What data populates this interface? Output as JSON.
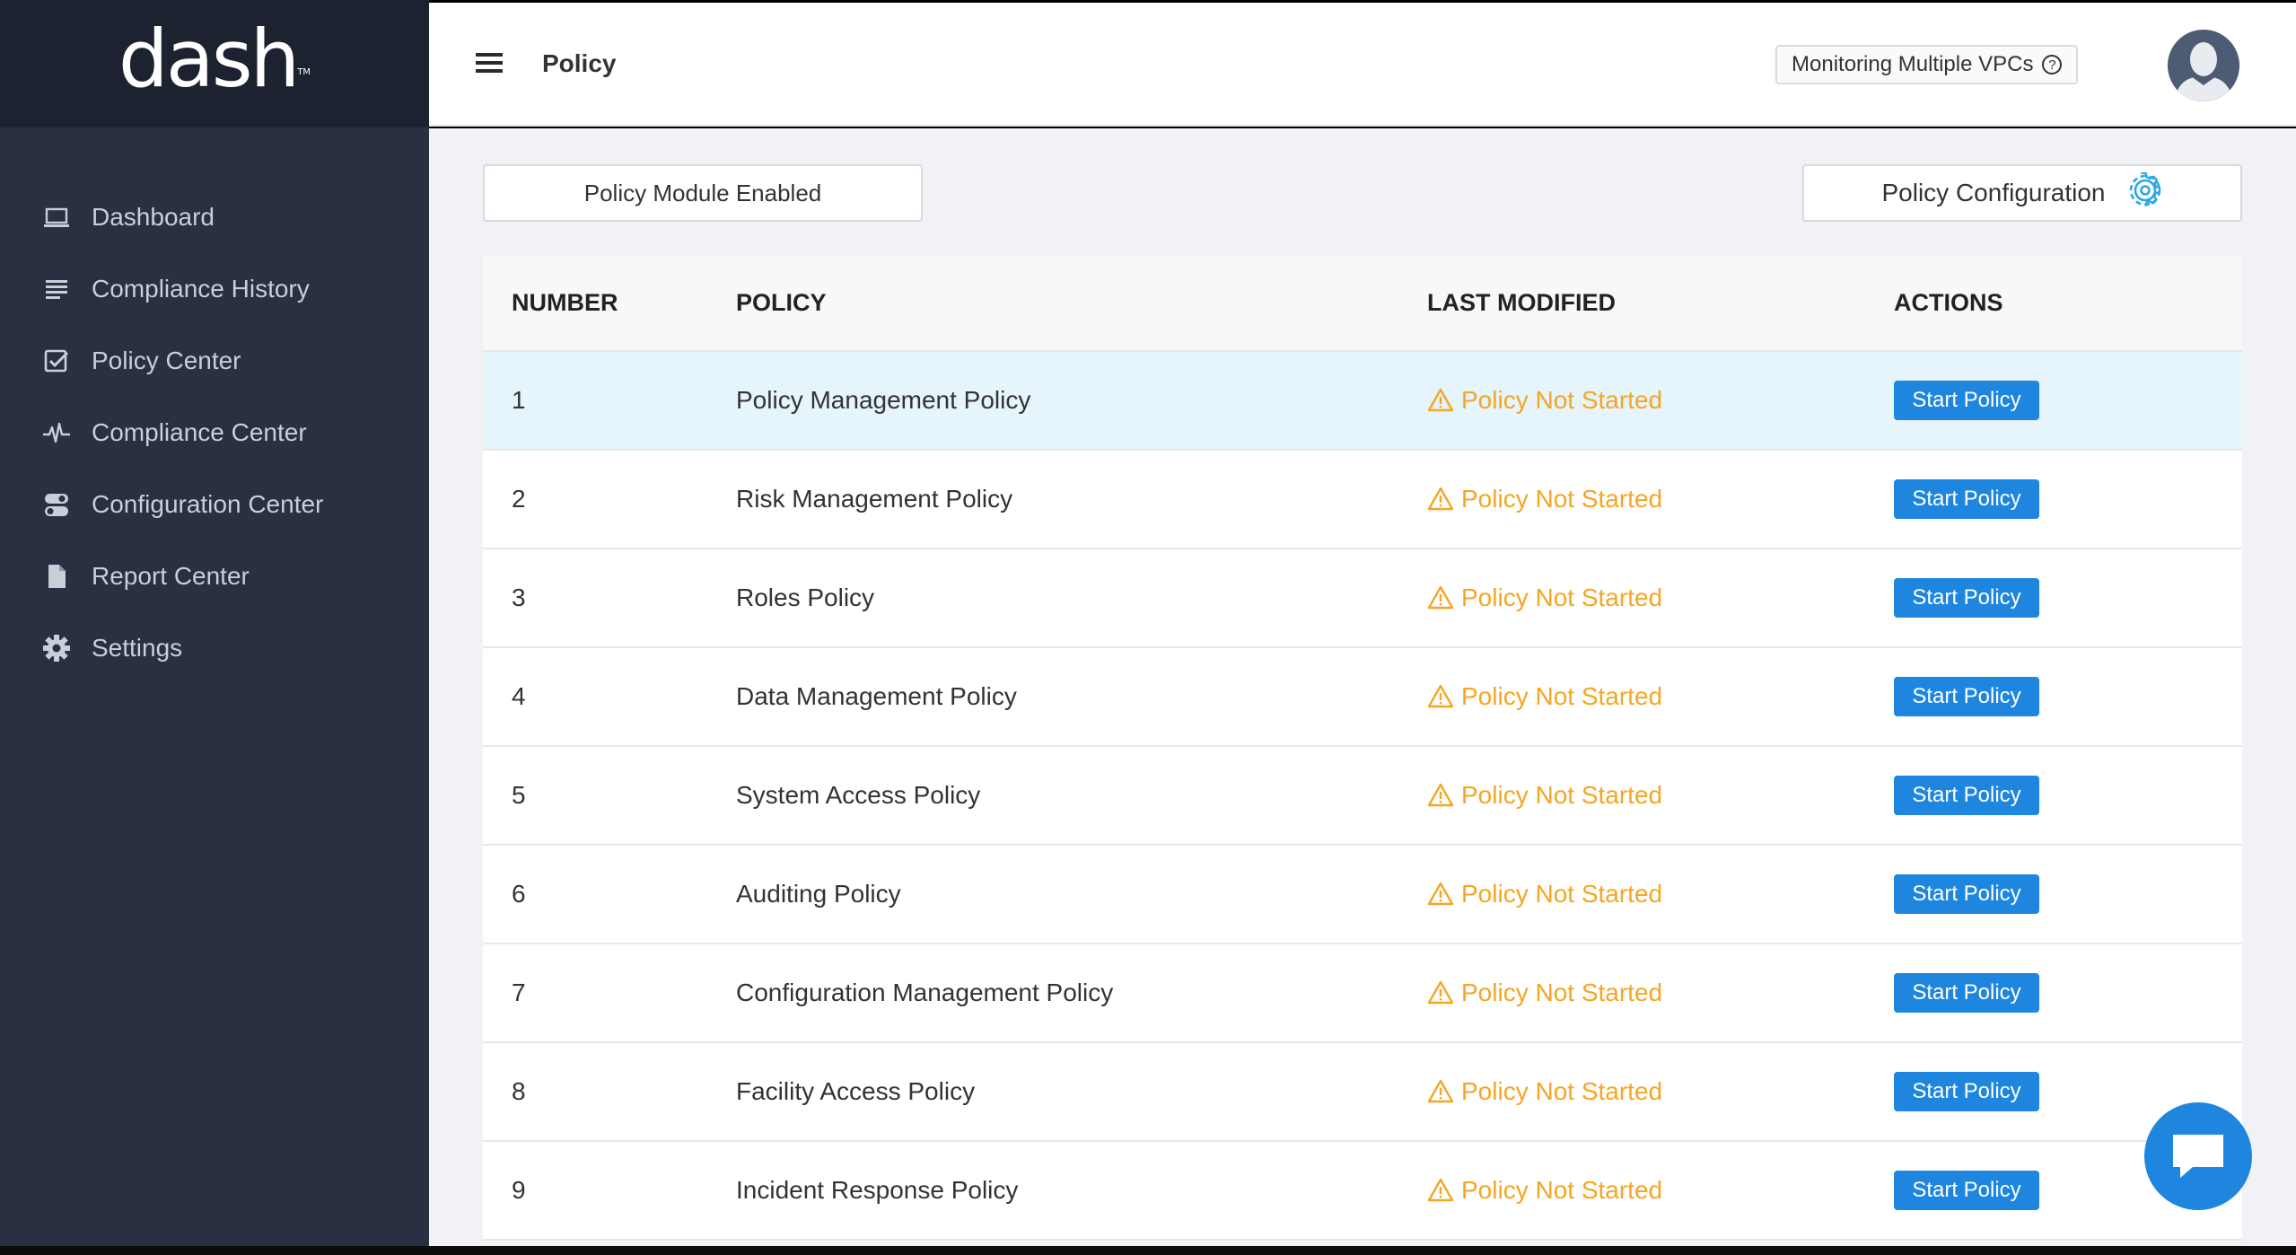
{
  "app": {
    "logo": "dash",
    "logo_tm": "TM"
  },
  "sidebar": {
    "items": [
      {
        "label": "Dashboard",
        "icon": "laptop-icon"
      },
      {
        "label": "Compliance History",
        "icon": "list-icon"
      },
      {
        "label": "Policy Center",
        "icon": "checkbox-icon"
      },
      {
        "label": "Compliance Center",
        "icon": "pulse-icon"
      },
      {
        "label": "Configuration Center",
        "icon": "toggles-icon"
      },
      {
        "label": "Report Center",
        "icon": "file-icon"
      },
      {
        "label": "Settings",
        "icon": "gear-icon"
      }
    ]
  },
  "header": {
    "title": "Policy",
    "vpc_badge": "Monitoring Multiple VPCs",
    "vpc_help": "?"
  },
  "toolbar": {
    "module_status": "Policy Module Enabled",
    "config_label": "Policy Configuration"
  },
  "table": {
    "columns": [
      "NUMBER",
      "POLICY",
      "LAST MODIFIED",
      "ACTIONS"
    ],
    "rows": [
      {
        "number": "1",
        "policy": "Policy Management Policy",
        "status": "Policy Not Started",
        "action": "Start Policy"
      },
      {
        "number": "2",
        "policy": "Risk Management Policy",
        "status": "Policy Not Started",
        "action": "Start Policy"
      },
      {
        "number": "3",
        "policy": "Roles Policy",
        "status": "Policy Not Started",
        "action": "Start Policy"
      },
      {
        "number": "4",
        "policy": "Data Management Policy",
        "status": "Policy Not Started",
        "action": "Start Policy"
      },
      {
        "number": "5",
        "policy": "System Access Policy",
        "status": "Policy Not Started",
        "action": "Start Policy"
      },
      {
        "number": "6",
        "policy": "Auditing Policy",
        "status": "Policy Not Started",
        "action": "Start Policy"
      },
      {
        "number": "7",
        "policy": "Configuration Management Policy",
        "status": "Policy Not Started",
        "action": "Start Policy"
      },
      {
        "number": "8",
        "policy": "Facility Access Policy",
        "status": "Policy Not Started",
        "action": "Start Policy"
      },
      {
        "number": "9",
        "policy": "Incident Response Policy",
        "status": "Policy Not Started",
        "action": "Start Policy"
      }
    ]
  },
  "colors": {
    "sidebar_bg": "#283041",
    "logo_bg": "#1c2230",
    "accent": "#1e86df",
    "warning": "#f5a623",
    "highlight_row": "#e6f4fb"
  }
}
